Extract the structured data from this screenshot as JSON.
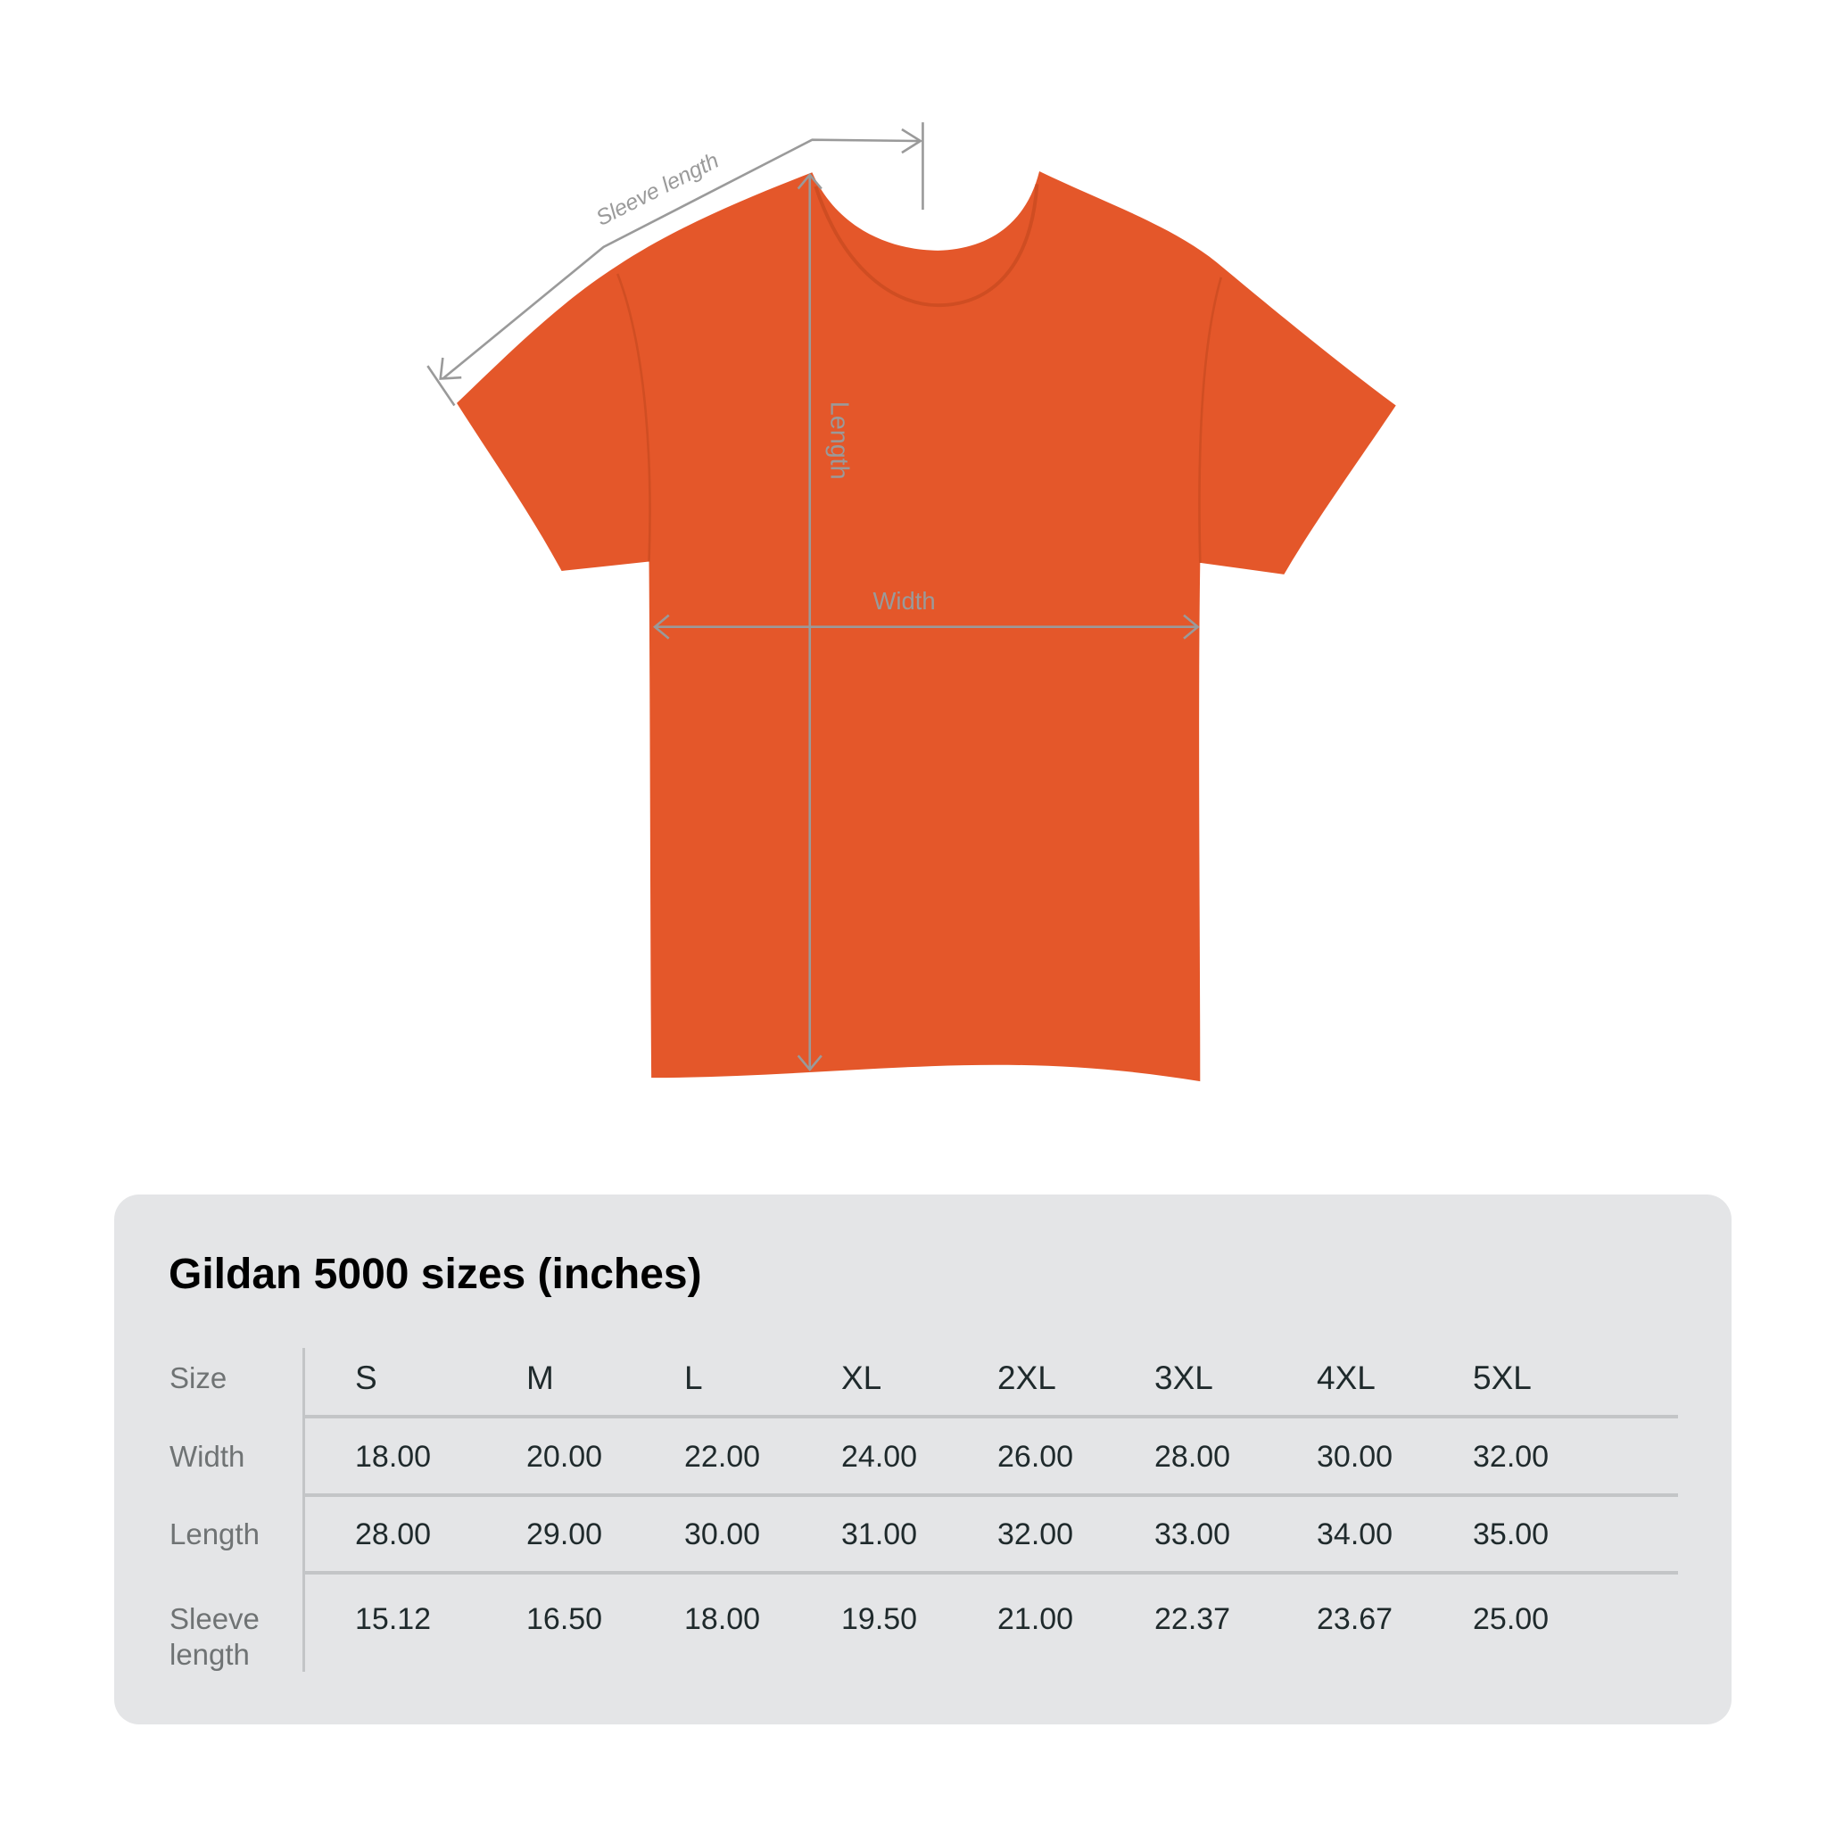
{
  "diagram": {
    "shirt_color": "#e4572a",
    "annotation_color": "#9a9a9a",
    "labels": {
      "sleeve": "Sleeve length",
      "length": "Length",
      "width": "Width"
    }
  },
  "table": {
    "title": "Gildan 5000 sizes (inches)",
    "row_labels": [
      "Size",
      "Width",
      "Length",
      "Sleeve length"
    ],
    "sizes": [
      "S",
      "M",
      "L",
      "XL",
      "2XL",
      "3XL",
      "4XL",
      "5XL"
    ],
    "width": [
      "18.00",
      "20.00",
      "22.00",
      "24.00",
      "26.00",
      "28.00",
      "30.00",
      "32.00"
    ],
    "length": [
      "28.00",
      "29.00",
      "30.00",
      "31.00",
      "32.00",
      "33.00",
      "34.00",
      "35.00"
    ],
    "sleeve_length": [
      "15.12",
      "16.50",
      "18.00",
      "19.50",
      "21.00",
      "22.37",
      "23.67",
      "25.00"
    ]
  }
}
